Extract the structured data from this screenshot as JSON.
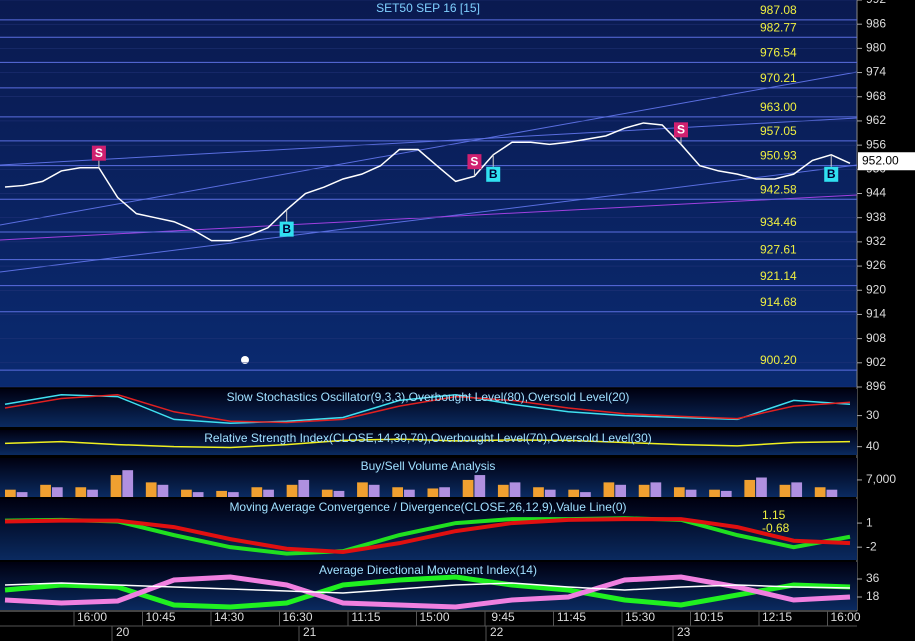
{
  "time_axis": {
    "labels": [
      "16:00",
      "10:45",
      "14:30",
      "16:30",
      "11:15",
      "15:00",
      "9:45",
      "11:45",
      "15:30",
      "10:15",
      "12:15",
      "16:00"
    ],
    "dates": [
      "20",
      "21",
      "22",
      "23"
    ]
  },
  "chart_data": [
    {
      "type": "line",
      "title": "SET50 SEP 16  [15]",
      "color": "#ffffff",
      "values": [
        945.6,
        946,
        947,
        949.6,
        950.4,
        950.4,
        943,
        939,
        938,
        937,
        935,
        932.3,
        932.3,
        933.6,
        935.5,
        940,
        944,
        945.6,
        947.6,
        948.8,
        950.9,
        954.9,
        954.9,
        950.9,
        947,
        948.3,
        953.6,
        956.7,
        956.7,
        956.2,
        956.7,
        957.5,
        958.3,
        960.2,
        961.5,
        961,
        956.2,
        950.9,
        949.6,
        948.8,
        947.6,
        947.6,
        948.8,
        952.2,
        953.6,
        951.5
      ],
      "ylim": [
        896,
        992
      ],
      "yticks": [
        992,
        986,
        980,
        974,
        968,
        962,
        956,
        950,
        944,
        938,
        932,
        926,
        920,
        914,
        908,
        902,
        896
      ],
      "levels": [
        987.08,
        982.77,
        976.54,
        970.21,
        {
          "value": 963,
          "label": "963.00"
        },
        957.05,
        950.93,
        942.58,
        934.46,
        927.61,
        921.14,
        914.68,
        {
          "value": 900.2,
          "label": "900.20"
        }
      ],
      "last_price": {
        "value": 952,
        "label": "952.00"
      },
      "markers": [
        {
          "label": "S",
          "index": 5
        },
        {
          "label": "B",
          "index": 15
        },
        {
          "label": "S",
          "index": 25
        },
        {
          "label": "B",
          "index": 26
        },
        {
          "label": "S",
          "index": 36
        },
        {
          "label": "B",
          "index": 44
        }
      ]
    },
    {
      "type": "line",
      "title": "Slow Stochastics Oscillator(9,3,3),Overbought Level(80),Oversold Level(20)",
      "series": [
        {
          "color": "#40e0f0",
          "values": [
            60,
            85,
            80,
            20,
            10,
            15,
            25,
            70,
            85,
            60,
            40,
            30,
            25,
            20,
            70,
            60
          ]
        },
        {
          "color": "#e02020",
          "values": [
            50,
            75,
            85,
            40,
            15,
            12,
            20,
            55,
            80,
            70,
            50,
            35,
            28,
            22,
            55,
            65
          ]
        }
      ],
      "ylim": [
        0,
        100
      ],
      "yticks": [
        30
      ]
    },
    {
      "type": "line",
      "title": "Relative Strength Index(CLOSE,14,30,70),Overbought Level(70),Oversold Level(30)",
      "series": [
        {
          "color": "#f0f020",
          "values": [
            48,
            52,
            45,
            40,
            38,
            45,
            55,
            58,
            54,
            56,
            55,
            50,
            45,
            42,
            50,
            52
          ]
        }
      ],
      "ylim": [
        20,
        80
      ],
      "yticks": [
        40
      ]
    },
    {
      "type": "bar",
      "title": "Buy/Sell Volume Analysis",
      "series": [
        {
          "color": "#f0a030",
          "values": [
            3000,
            5000,
            4000,
            9000,
            6000,
            3000,
            2500,
            4000,
            5000,
            3000,
            6000,
            4000,
            3500,
            7000,
            5000,
            4000,
            3000,
            6000,
            5000,
            4000,
            3000,
            7000,
            5000,
            4000
          ]
        },
        {
          "color": "#b090e0",
          "values": [
            2000,
            4000,
            3000,
            11000,
            5000,
            2000,
            2000,
            3000,
            7000,
            2500,
            5000,
            3000,
            4000,
            9000,
            6000,
            3000,
            2000,
            5000,
            6000,
            3000,
            2500,
            8000,
            6000,
            3000
          ]
        }
      ],
      "ylim": [
        0,
        16000
      ],
      "yticks": [
        {
          "value": 7000,
          "label": "7,000"
        }
      ]
    },
    {
      "type": "line",
      "title": "Moving Average Convergence / Divergence(CLOSE,26,12,9),Value Line(0)",
      "series": [
        {
          "color": "#20e020",
          "values": [
            1.3,
            1.4,
            1.2,
            -0.5,
            -2,
            -2.8,
            -2.5,
            -0.5,
            1,
            1.5,
            1.5,
            1.6,
            1.4,
            -0.5,
            -2,
            -0.7
          ]
        },
        {
          "color": "#e01010",
          "values": [
            1.2,
            1.3,
            1.3,
            0.5,
            -1,
            -2.2,
            -2.6,
            -1.5,
            0,
            1,
            1.4,
            1.5,
            1.5,
            0.5,
            -1.2,
            -1.5
          ]
        }
      ],
      "last_values": [
        1.15,
        -0.68
      ],
      "ylim": [
        -3.6,
        4
      ],
      "yticks": [
        1,
        -2
      ]
    },
    {
      "type": "line",
      "title": "Average Directional Movement Index(14)",
      "series": [
        {
          "color": "#20f020",
          "values": [
            25,
            30,
            28,
            10,
            8,
            12,
            30,
            35,
            38,
            30,
            25,
            15,
            10,
            20,
            30,
            28
          ]
        },
        {
          "color": "#f080e0",
          "values": [
            15,
            12,
            14,
            35,
            38,
            30,
            12,
            10,
            8,
            15,
            18,
            35,
            38,
            28,
            15,
            18
          ]
        },
        {
          "color": "#ffffff",
          "values": [
            30,
            32,
            30,
            28,
            26,
            24,
            22,
            26,
            30,
            32,
            28,
            25,
            28,
            30,
            28,
            27
          ]
        }
      ],
      "ylim": [
        5,
        53
      ],
      "yticks": [
        36,
        18
      ]
    }
  ]
}
